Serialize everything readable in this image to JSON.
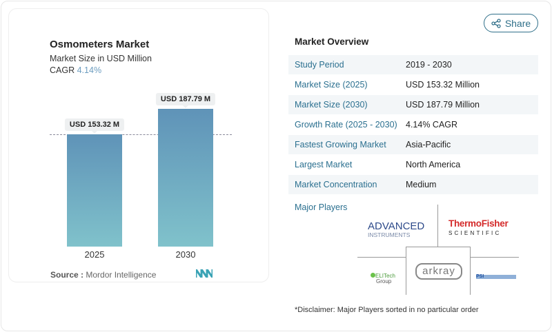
{
  "card": {
    "title": "Osmometers Market",
    "subtitle": "Market Size in USD Million",
    "cagr_label": "CAGR",
    "cagr_value": "4.14%",
    "source_label": "Source :",
    "source_value": "Mordor Intelligence"
  },
  "chart_data": {
    "type": "bar",
    "categories": [
      "2025",
      "2030"
    ],
    "values": [
      153.32,
      187.79
    ],
    "data_labels": [
      "USD 153.32 M",
      "USD 187.79 M"
    ],
    "title": "Osmometers Market",
    "ylabel": "Market Size in USD Million",
    "colors": [
      "#5f93b8",
      "#80c2cb"
    ]
  },
  "share": {
    "label": "Share",
    "icon": "share-icon"
  },
  "overview": {
    "title": "Market Overview",
    "rows": [
      {
        "k": "Study Period",
        "v": "2019 - 2030"
      },
      {
        "k": "Market Size (2025)",
        "v": "USD 153.32 Million"
      },
      {
        "k": "Market Size (2030)",
        "v": "USD 187.79 Million"
      },
      {
        "k": "Growth Rate (2025 - 2030)",
        "v": "4.14% CAGR"
      },
      {
        "k": "Fastest Growing Market",
        "v": "Asia-Pacific"
      },
      {
        "k": "Largest Market",
        "v": "North America"
      },
      {
        "k": "Market Concentration",
        "v": "Medium"
      }
    ]
  },
  "players": {
    "title": "Major Players",
    "logos": [
      "ADVANCED INSTRUMENTS",
      "Thermo Fisher SCIENTIFIC",
      "ELITech Group",
      "arkray",
      "PSI"
    ]
  },
  "disclaimer": "*Disclaimer: Major Players sorted in no particular order",
  "row_colors": [
    "#f3f6f8",
    "#ffffff"
  ]
}
